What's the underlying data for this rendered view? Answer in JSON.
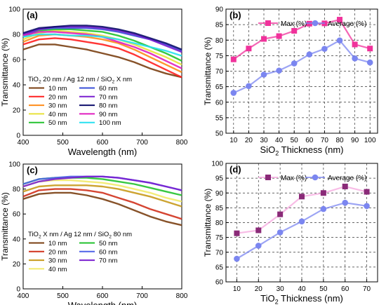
{
  "chart_data": [
    {
      "type": "line",
      "panel_label": "(a)",
      "xlabel": "Wavelength (nm)",
      "ylabel": "Transmittance (%)",
      "xlim": [
        400,
        800
      ],
      "ylim": [
        0,
        100
      ],
      "xticks": [
        400,
        500,
        600,
        700,
        800
      ],
      "yticks": [
        0,
        20,
        40,
        60,
        80,
        100
      ],
      "legend_title": [
        "TiO",
        "2",
        " 20 nm / Ag 12 nm / SiO",
        "2",
        " X nm"
      ],
      "legend_placement": "bottom-left",
      "legend_columns": 2,
      "series": [
        {
          "name": "10 nm",
          "color": "#7a3f12",
          "x": [
            400,
            440,
            480,
            520,
            560,
            600,
            640,
            680,
            720,
            760,
            800
          ],
          "y": [
            68,
            72,
            72,
            70,
            68,
            65,
            62,
            58,
            53,
            49,
            46
          ]
        },
        {
          "name": "20 nm",
          "color": "#ff2020",
          "x": [
            400,
            440,
            480,
            520,
            560,
            600,
            640,
            680,
            720,
            760,
            800
          ],
          "y": [
            72,
            76,
            77,
            76,
            74,
            72,
            69,
            64,
            58,
            52,
            46
          ]
        },
        {
          "name": "30 nm",
          "color": "#ff8c1a",
          "x": [
            400,
            440,
            480,
            520,
            560,
            600,
            640,
            680,
            720,
            760,
            800
          ],
          "y": [
            74,
            79,
            80,
            79,
            78,
            76,
            73,
            68,
            62,
            56,
            50
          ]
        },
        {
          "name": "40 nm",
          "color": "#e8e23a",
          "x": [
            400,
            440,
            480,
            520,
            560,
            600,
            640,
            680,
            720,
            760,
            800
          ],
          "y": [
            76,
            81,
            83,
            82,
            81,
            79,
            76,
            72,
            67,
            62,
            56
          ]
        },
        {
          "name": "50 nm",
          "color": "#22c22e",
          "x": [
            400,
            440,
            480,
            520,
            560,
            600,
            640,
            680,
            720,
            760,
            800
          ],
          "y": [
            78,
            83,
            84,
            84,
            83,
            82,
            79,
            75,
            70,
            65,
            59
          ]
        },
        {
          "name": "60 nm",
          "color": "#3a4fd8",
          "x": [
            400,
            440,
            480,
            520,
            560,
            600,
            640,
            680,
            720,
            760,
            800
          ],
          "y": [
            79,
            84,
            85,
            85,
            85,
            84,
            82,
            79,
            76,
            72,
            67
          ]
        },
        {
          "name": "70 nm",
          "color": "#7a1fd0",
          "x": [
            400,
            440,
            480,
            520,
            560,
            600,
            640,
            680,
            720,
            760,
            800
          ],
          "y": [
            80,
            84,
            86,
            86,
            86,
            85,
            83,
            80,
            76,
            71,
            66
          ]
        },
        {
          "name": "80 nm",
          "color": "#0d0d6b",
          "x": [
            400,
            440,
            480,
            520,
            560,
            600,
            640,
            680,
            720,
            760,
            800
          ],
          "y": [
            81,
            85,
            86,
            87,
            87,
            86,
            84,
            81,
            77,
            73,
            68
          ]
        },
        {
          "name": "90 nm",
          "color": "#e01fbf",
          "x": [
            400,
            440,
            480,
            520,
            560,
            600,
            640,
            680,
            720,
            760,
            800
          ],
          "y": [
            79,
            82,
            82,
            81,
            80,
            78,
            74,
            70,
            65,
            59,
            53
          ]
        },
        {
          "name": "100 nm",
          "color": "#27e0f0",
          "x": [
            400,
            440,
            480,
            520,
            560,
            600,
            640,
            680,
            720,
            760,
            800
          ],
          "y": [
            78,
            80,
            80,
            79,
            79,
            78,
            76,
            73,
            70,
            67,
            63
          ]
        }
      ]
    },
    {
      "type": "line",
      "panel_label": "(b)",
      "xlabel": [
        "SiO",
        "2",
        " Thickness (nm)"
      ],
      "ylabel": "Transmittance (%)",
      "categories": [
        10,
        20,
        30,
        40,
        50,
        60,
        70,
        80,
        90,
        100
      ],
      "xlim": [
        5,
        105
      ],
      "ylim": [
        50,
        90
      ],
      "yticks": [
        50,
        55,
        60,
        65,
        70,
        75,
        80,
        85,
        90
      ],
      "grid": true,
      "legend_placement": "top",
      "series": [
        {
          "name": "Max (%)",
          "color": "#f0329b",
          "marker": "square",
          "values": [
            73.8,
            77.3,
            80.4,
            81.3,
            83.0,
            85.3,
            85.4,
            86.6,
            78.6,
            77.3
          ]
        },
        {
          "name": "Average (%)",
          "color": "#7b86f0",
          "marker": "circle",
          "values": [
            63.0,
            65.2,
            68.9,
            70.2,
            72.5,
            75.4,
            77.2,
            79.9,
            74.1,
            72.8
          ]
        }
      ]
    },
    {
      "type": "line",
      "panel_label": "(c)",
      "xlabel": "Wavelength (nm)",
      "ylabel": "Transmittance (%)",
      "xlim": [
        400,
        800
      ],
      "ylim": [
        0,
        100
      ],
      "xticks": [
        400,
        500,
        600,
        700,
        800
      ],
      "yticks": [
        0,
        20,
        40,
        60,
        80,
        100
      ],
      "legend_title": [
        "TiO",
        "2",
        " X nm / Ag 12 nm / SiO",
        "2",
        " 80 nm"
      ],
      "legend_placement": "bottom-left",
      "legend_columns": 2,
      "series": [
        {
          "name": "10 nm",
          "color": "#7a3f12",
          "x": [
            400,
            440,
            480,
            520,
            560,
            600,
            640,
            680,
            720,
            760,
            800
          ],
          "y": [
            72,
            76,
            77,
            77,
            75,
            72,
            68,
            63,
            58,
            54,
            51
          ]
        },
        {
          "name": "20 nm",
          "color": "#d0311c",
          "x": [
            400,
            440,
            480,
            520,
            560,
            600,
            640,
            680,
            720,
            760,
            800
          ],
          "y": [
            74,
            79,
            80,
            80,
            79,
            77,
            73,
            69,
            64,
            60,
            56
          ]
        },
        {
          "name": "30 nm",
          "color": "#c89a1c",
          "x": [
            400,
            440,
            480,
            520,
            560,
            600,
            640,
            680,
            720,
            760,
            800
          ],
          "y": [
            78,
            82,
            83,
            83,
            83,
            82,
            80,
            77,
            74,
            70,
            66
          ]
        },
        {
          "name": "40 nm",
          "color": "#f2ea6a",
          "x": [
            400,
            440,
            480,
            520,
            560,
            600,
            640,
            680,
            720,
            760,
            800
          ],
          "y": [
            82,
            86,
            87,
            87,
            86,
            85,
            83,
            80,
            77,
            73,
            70
          ]
        },
        {
          "name": "50 nm",
          "color": "#22c22e",
          "x": [
            400,
            440,
            480,
            520,
            560,
            600,
            640,
            680,
            720,
            760,
            800
          ],
          "y": [
            84,
            88,
            89,
            89,
            89,
            88,
            86,
            84,
            81,
            78,
            75
          ]
        },
        {
          "name": "60 nm",
          "color": "#4e62e8",
          "x": [
            400,
            440,
            480,
            520,
            560,
            600,
            640,
            680,
            720,
            760,
            800
          ],
          "y": [
            84,
            88,
            89,
            90,
            90,
            90,
            89,
            87,
            85,
            82,
            79
          ]
        },
        {
          "name": "70 nm",
          "color": "#7a1fd0",
          "x": [
            400,
            440,
            480,
            520,
            560,
            600,
            640,
            680,
            720,
            760,
            800
          ],
          "y": [
            82,
            86,
            88,
            89,
            90,
            90,
            89,
            87,
            85,
            82,
            79
          ]
        }
      ]
    },
    {
      "type": "line",
      "panel_label": "(d)",
      "xlabel": [
        "TiO",
        "2",
        " Thickness (nm)"
      ],
      "ylabel": "Transmittance (%)",
      "categories": [
        10,
        20,
        30,
        40,
        50,
        60,
        70
      ],
      "xlim": [
        5,
        75
      ],
      "ylim": [
        60,
        100
      ],
      "yticks": [
        60,
        65,
        70,
        75,
        80,
        85,
        90,
        95,
        100
      ],
      "grid": true,
      "legend_placement": "top",
      "series": [
        {
          "name": "Max (%)",
          "color": "#8a2a78",
          "line_color": "#f5a6de",
          "marker": "square",
          "values": [
            76.4,
            77.4,
            82.8,
            88.8,
            90.0,
            92.2,
            90.4
          ]
        },
        {
          "name": "Average (%)",
          "color": "#7b86f0",
          "marker": "circle",
          "values": [
            67.8,
            72.2,
            76.7,
            80.4,
            84.6,
            86.7,
            85.6
          ]
        }
      ]
    }
  ]
}
